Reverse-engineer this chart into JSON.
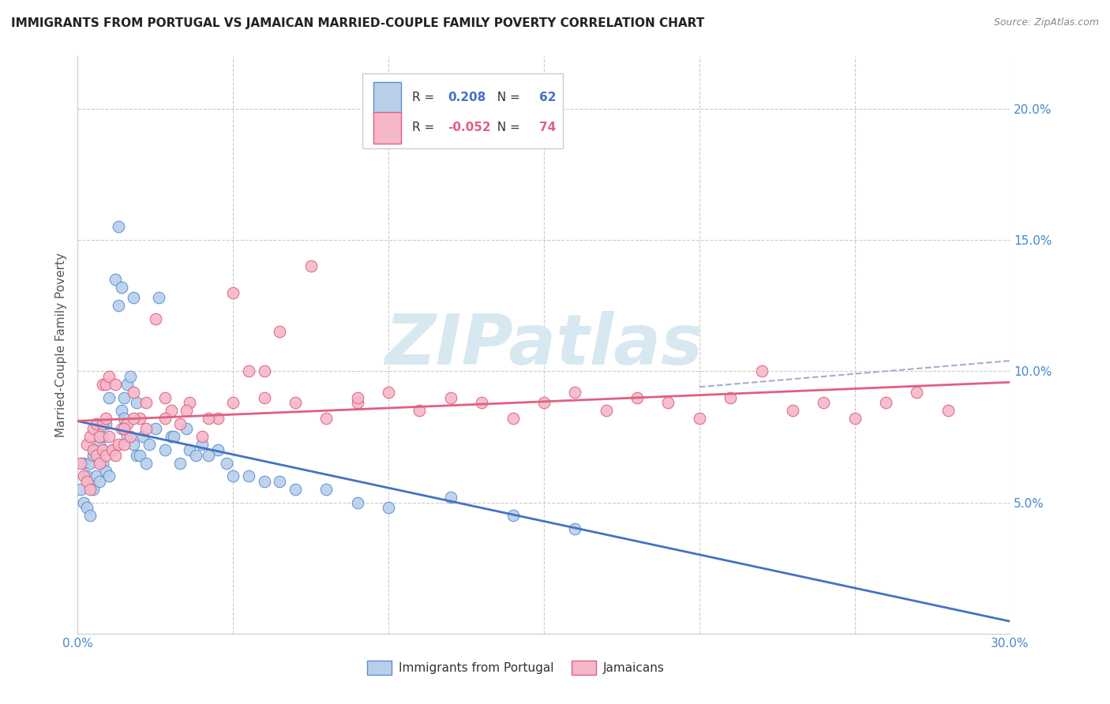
{
  "title": "IMMIGRANTS FROM PORTUGAL VS JAMAICAN MARRIED-COUPLE FAMILY POVERTY CORRELATION CHART",
  "source": "Source: ZipAtlas.com",
  "ylabel": "Married-Couple Family Poverty",
  "xlim": [
    0.0,
    0.3
  ],
  "ylim": [
    0.0,
    0.22
  ],
  "xtick_positions": [
    0.0,
    0.05,
    0.1,
    0.15,
    0.2,
    0.25,
    0.3
  ],
  "xticklabels": [
    "0.0%",
    "",
    "",
    "",
    "",
    "",
    "30.0%"
  ],
  "ytick_positions": [
    0.05,
    0.1,
    0.15,
    0.2
  ],
  "yticklabels": [
    "5.0%",
    "10.0%",
    "15.0%",
    "20.0%"
  ],
  "r_portugal": 0.208,
  "n_portugal": 62,
  "r_jamaican": -0.052,
  "n_jamaican": 74,
  "color_portugal_fill": "#b8d0ea",
  "color_portugal_edge": "#5b8fd4",
  "color_jamaican_fill": "#f5b8ca",
  "color_jamaican_edge": "#e0607a",
  "line_color_portugal": "#4472c4",
  "line_color_jamaican": "#e06080",
  "line_color_dash": "#aaaacc",
  "watermark_color": "#d8e8f0",
  "background_color": "#ffffff",
  "grid_color": "#cccccc",
  "grid_style": "--",
  "title_color": "#222222",
  "axis_label_color": "#4488cc",
  "tick_color": "#4488cc",
  "legend_edge_color": "#cccccc",
  "source_color": "#888888",
  "portugal_x": [
    0.001,
    0.002,
    0.002,
    0.003,
    0.003,
    0.004,
    0.004,
    0.005,
    0.005,
    0.006,
    0.006,
    0.007,
    0.007,
    0.008,
    0.008,
    0.009,
    0.009,
    0.01,
    0.01,
    0.011,
    0.012,
    0.013,
    0.014,
    0.015,
    0.016,
    0.018,
    0.019,
    0.02,
    0.022,
    0.025,
    0.028,
    0.03,
    0.033,
    0.036,
    0.038,
    0.04,
    0.045,
    0.05,
    0.06,
    0.07,
    0.08,
    0.09,
    0.1,
    0.12,
    0.14,
    0.16,
    0.013,
    0.014,
    0.015,
    0.016,
    0.017,
    0.018,
    0.019,
    0.021,
    0.023,
    0.026,
    0.031,
    0.035,
    0.042,
    0.048,
    0.055,
    0.065
  ],
  "portugal_y": [
    0.055,
    0.05,
    0.065,
    0.048,
    0.06,
    0.045,
    0.065,
    0.055,
    0.068,
    0.06,
    0.07,
    0.058,
    0.072,
    0.065,
    0.075,
    0.062,
    0.08,
    0.06,
    0.09,
    0.07,
    0.135,
    0.155,
    0.085,
    0.082,
    0.075,
    0.072,
    0.068,
    0.068,
    0.065,
    0.078,
    0.07,
    0.075,
    0.065,
    0.07,
    0.068,
    0.072,
    0.07,
    0.06,
    0.058,
    0.055,
    0.055,
    0.05,
    0.048,
    0.052,
    0.045,
    0.04,
    0.125,
    0.132,
    0.09,
    0.095,
    0.098,
    0.128,
    0.088,
    0.075,
    0.072,
    0.128,
    0.075,
    0.078,
    0.068,
    0.065,
    0.06,
    0.058
  ],
  "jamaican_x": [
    0.001,
    0.002,
    0.003,
    0.003,
    0.004,
    0.004,
    0.005,
    0.005,
    0.006,
    0.006,
    0.007,
    0.007,
    0.008,
    0.008,
    0.009,
    0.009,
    0.01,
    0.011,
    0.012,
    0.013,
    0.014,
    0.015,
    0.016,
    0.017,
    0.018,
    0.02,
    0.022,
    0.025,
    0.028,
    0.03,
    0.033,
    0.036,
    0.04,
    0.045,
    0.05,
    0.055,
    0.06,
    0.065,
    0.07,
    0.08,
    0.09,
    0.1,
    0.11,
    0.12,
    0.13,
    0.14,
    0.15,
    0.16,
    0.17,
    0.18,
    0.19,
    0.2,
    0.21,
    0.22,
    0.23,
    0.24,
    0.25,
    0.26,
    0.27,
    0.28,
    0.008,
    0.009,
    0.01,
    0.012,
    0.015,
    0.018,
    0.022,
    0.028,
    0.035,
    0.042,
    0.05,
    0.06,
    0.075,
    0.09
  ],
  "jamaican_y": [
    0.065,
    0.06,
    0.072,
    0.058,
    0.075,
    0.055,
    0.07,
    0.078,
    0.068,
    0.08,
    0.065,
    0.075,
    0.07,
    0.08,
    0.068,
    0.082,
    0.075,
    0.07,
    0.068,
    0.072,
    0.078,
    0.072,
    0.08,
    0.075,
    0.092,
    0.082,
    0.078,
    0.12,
    0.09,
    0.085,
    0.08,
    0.088,
    0.075,
    0.082,
    0.088,
    0.1,
    0.09,
    0.115,
    0.088,
    0.082,
    0.088,
    0.092,
    0.085,
    0.09,
    0.088,
    0.082,
    0.088,
    0.092,
    0.085,
    0.09,
    0.088,
    0.082,
    0.09,
    0.1,
    0.085,
    0.088,
    0.082,
    0.088,
    0.092,
    0.085,
    0.095,
    0.095,
    0.098,
    0.095,
    0.078,
    0.082,
    0.088,
    0.082,
    0.085,
    0.082,
    0.13,
    0.1,
    0.14,
    0.09
  ]
}
